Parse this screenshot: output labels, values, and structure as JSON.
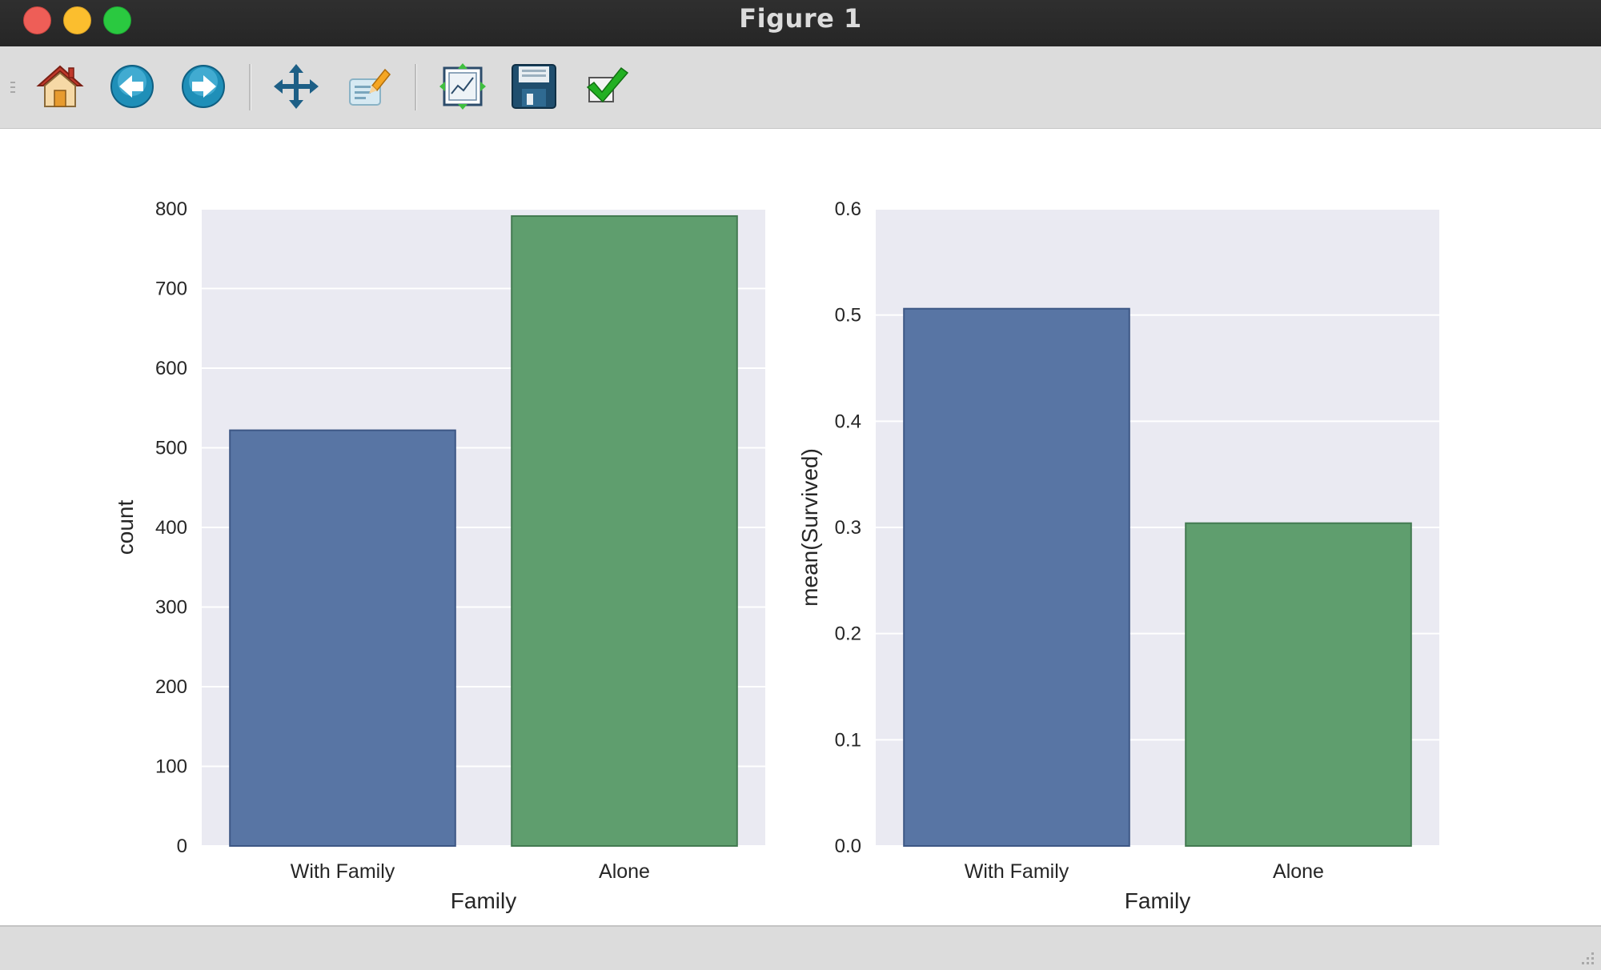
{
  "window": {
    "title": "Figure 1"
  },
  "toolbar": {
    "buttons": [
      {
        "name": "home",
        "icon": "home-icon"
      },
      {
        "name": "back",
        "icon": "arrow-left-icon"
      },
      {
        "name": "forward",
        "icon": "arrow-right-icon"
      },
      {
        "name": "pan",
        "icon": "move-icon"
      },
      {
        "name": "zoom",
        "icon": "zoom-rect-icon"
      },
      {
        "name": "subplots",
        "icon": "configure-subplots-icon"
      },
      {
        "name": "save",
        "icon": "floppy-disk-icon"
      },
      {
        "name": "edit-parameters",
        "icon": "checkmark-icon"
      }
    ]
  },
  "status": {
    "text": ""
  },
  "colors": {
    "plot_bg": "#eaeaf2",
    "grid": "#ffffff",
    "bar_blue": "#5875a4",
    "bar_green": "#5f9e6e",
    "bar_blue_edge": "#3d5785",
    "bar_green_edge": "#437a51",
    "text": "#262626"
  },
  "chart_data": [
    {
      "type": "bar",
      "categories": [
        "With Family",
        "Alone"
      ],
      "values": [
        522,
        791
      ],
      "xlabel": "Family",
      "ylabel": "count",
      "ylim": [
        0,
        800
      ],
      "yticks": [
        "0",
        "100",
        "200",
        "300",
        "400",
        "500",
        "600",
        "700",
        "800"
      ],
      "grid": true,
      "bar_colors": [
        "#5875a4",
        "#5f9e6e"
      ]
    },
    {
      "type": "bar",
      "categories": [
        "With Family",
        "Alone"
      ],
      "values": [
        0.506,
        0.304
      ],
      "xlabel": "Family",
      "ylabel": "mean(Survived)",
      "ylim": [
        0,
        0.6
      ],
      "yticks": [
        "0.0",
        "0.1",
        "0.2",
        "0.3",
        "0.4",
        "0.5",
        "0.6"
      ],
      "grid": true,
      "bar_colors": [
        "#5875a4",
        "#5f9e6e"
      ]
    }
  ]
}
